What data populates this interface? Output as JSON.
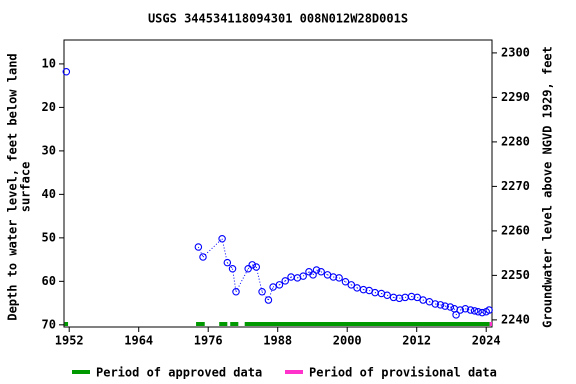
{
  "chart_data": {
    "type": "scatter",
    "title": "USGS 344534118094301 008N012W28D001S",
    "ylabel": [
      "Depth to water level, feet below land",
      "surface"
    ],
    "y2label": "Groundwater level above NGVD 1929, feet",
    "xlim": [
      1951.1,
      2025.0
    ],
    "xticks": [
      1952,
      1964,
      1976,
      1988,
      2000,
      2012,
      2024
    ],
    "ylim": [
      4.5,
      70.5
    ],
    "y_inverted": true,
    "yticks": [
      10,
      20,
      30,
      40,
      50,
      60,
      70
    ],
    "y2lim": [
      2238.4,
      2302.9
    ],
    "y2ticks": [
      2240,
      2250,
      2260,
      2270,
      2280,
      2290,
      2300
    ],
    "series": [
      {
        "color": "#0000ff",
        "x": [
          1951.5,
          1974.3,
          1975.1,
          1978.4,
          1979.3,
          1980.2,
          1980.8,
          1982.9,
          1983.6,
          1984.3,
          1985.3,
          1986.4,
          1987.2,
          1988.3,
          1989.3,
          1990.3,
          1991.4,
          1992.4,
          1993.4,
          1994.1,
          1994.7,
          1995.5,
          1996.6,
          1997.6,
          1998.6,
          1999.7,
          2000.7,
          2001.7,
          2002.8,
          2003.8,
          2004.8,
          2005.9,
          2006.9,
          2008.0,
          2009.0,
          2010.0,
          2011.1,
          2012.1,
          2013.1,
          2014.2,
          2015.2,
          2016.1,
          2016.9,
          2017.8,
          2018.5,
          2018.8,
          2019.5,
          2020.4,
          2021.3,
          2022.0,
          2022.6,
          2023.3,
          2024.0,
          2024.5
        ],
        "values": [
          11.8,
          52.1,
          54.4,
          50.2,
          55.7,
          57.1,
          62.4,
          57.1,
          56.2,
          56.7,
          62.4,
          64.3,
          61.3,
          60.8,
          59.9,
          59.0,
          59.2,
          58.8,
          57.8,
          58.5,
          57.4,
          57.8,
          58.5,
          59.0,
          59.2,
          60.1,
          60.8,
          61.5,
          61.9,
          62.1,
          62.6,
          62.8,
          63.2,
          63.7,
          63.9,
          63.7,
          63.5,
          63.7,
          64.3,
          64.7,
          65.2,
          65.4,
          65.7,
          65.9,
          66.3,
          67.7,
          66.6,
          66.3,
          66.6,
          66.8,
          67.0,
          67.2,
          67.0,
          66.6
        ]
      }
    ],
    "periods": [
      {
        "name": "Period of approved data",
        "color": "#009900",
        "ranges": [
          [
            1951.2,
            1951.8
          ],
          [
            1973.9,
            1975.4
          ],
          [
            1977.9,
            1979.3
          ],
          [
            1979.8,
            1981.2
          ],
          [
            1982.3,
            2024.6
          ]
        ]
      },
      {
        "name": "Period of provisional data",
        "color": "#ff33cc",
        "ranges": [
          [
            2024.6,
            2025.0
          ]
        ]
      }
    ]
  }
}
